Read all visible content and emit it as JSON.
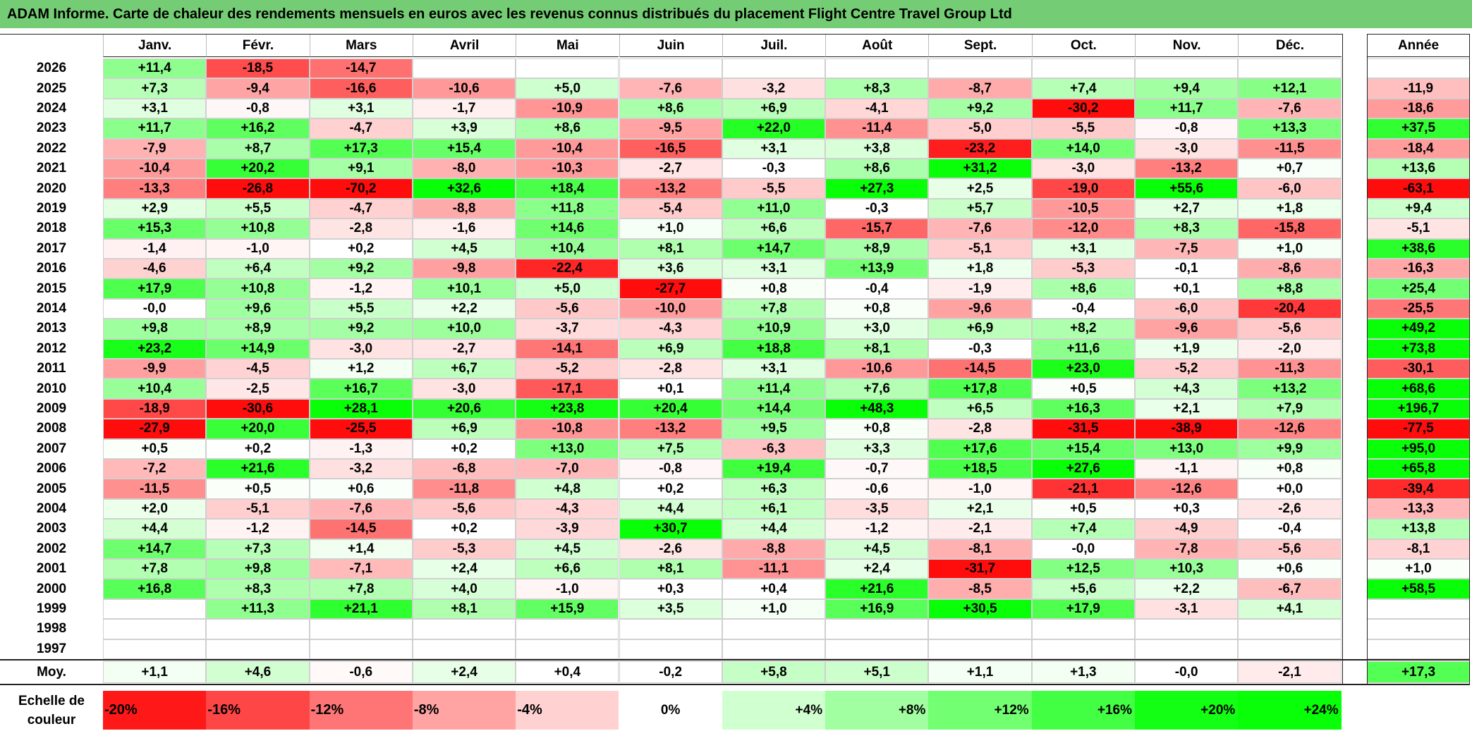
{
  "title": "ADAM Informe. Carte de chaleur des rendements mensuels en euros avec les revenus connus distribués du placement Flight Centre Travel Group Ltd",
  "months": [
    "Janv.",
    "Févr.",
    "Mars",
    "Avril",
    "Mai",
    "Juin",
    "Juil.",
    "Août",
    "Sept.",
    "Oct.",
    "Nov.",
    "Déc."
  ],
  "annual_label": "Année",
  "avg_label": "Moy.",
  "scale_title": "Echelle de couleur",
  "chart_data": {
    "type": "heatmap",
    "title": "ADAM Informe. Carte de chaleur des rendements mensuels en euros avec les revenus connus distribués du placement Flight Centre Travel Group Ltd",
    "columns": [
      "Janv.",
      "Févr.",
      "Mars",
      "Avril",
      "Mai",
      "Juin",
      "Juil.",
      "Août",
      "Sept.",
      "Oct.",
      "Nov.",
      "Déc.",
      "Année"
    ],
    "rows": [
      {
        "year": "2026",
        "values": [
          "+11,4",
          "-18,5",
          "-14,7",
          "",
          "",
          "",
          "",
          "",
          "",
          "",
          "",
          ""
        ],
        "annual": ""
      },
      {
        "year": "2025",
        "values": [
          "+7,3",
          "-9,4",
          "-16,6",
          "-10,6",
          "+5,0",
          "-7,6",
          "-3,2",
          "+8,3",
          "-8,7",
          "+7,4",
          "+9,4",
          "+12,1"
        ],
        "annual": "-11,9"
      },
      {
        "year": "2024",
        "values": [
          "+3,1",
          "-0,8",
          "+3,1",
          "-1,7",
          "-10,9",
          "+8,6",
          "+6,9",
          "-4,1",
          "+9,2",
          "-30,2",
          "+11,7",
          "-7,6"
        ],
        "annual": "-18,6"
      },
      {
        "year": "2023",
        "values": [
          "+11,7",
          "+16,2",
          "-4,7",
          "+3,9",
          "+8,6",
          "-9,5",
          "+22,0",
          "-11,4",
          "-5,0",
          "-5,5",
          "-0,8",
          "+13,3"
        ],
        "annual": "+37,5"
      },
      {
        "year": "2022",
        "values": [
          "-7,9",
          "+8,7",
          "+17,3",
          "+15,4",
          "-10,4",
          "-16,5",
          "+3,1",
          "+3,8",
          "-23,2",
          "+14,0",
          "-3,0",
          "-11,5"
        ],
        "annual": "-18,4"
      },
      {
        "year": "2021",
        "values": [
          "-10,4",
          "+20,2",
          "+9,1",
          "-8,0",
          "-10,3",
          "-2,7",
          "-0,3",
          "+8,6",
          "+31,2",
          "-3,0",
          "-13,2",
          "+0,7"
        ],
        "annual": "+13,6"
      },
      {
        "year": "2020",
        "values": [
          "-13,3",
          "-26,8",
          "-70,2",
          "+32,6",
          "+18,4",
          "-13,2",
          "-5,5",
          "+27,3",
          "+2,5",
          "-19,0",
          "+55,6",
          "-6,0"
        ],
        "annual": "-63,1"
      },
      {
        "year": "2019",
        "values": [
          "+2,9",
          "+5,5",
          "-4,7",
          "-8,8",
          "+11,8",
          "-5,4",
          "+11,0",
          "-0,3",
          "+5,7",
          "-10,5",
          "+2,7",
          "+1,8"
        ],
        "annual": "+9,4"
      },
      {
        "year": "2018",
        "values": [
          "+15,3",
          "+10,8",
          "-2,8",
          "-1,6",
          "+14,6",
          "+1,0",
          "+6,6",
          "-15,7",
          "-7,6",
          "-12,0",
          "+8,3",
          "-15,8"
        ],
        "annual": "-5,1"
      },
      {
        "year": "2017",
        "values": [
          "-1,4",
          "-1,0",
          "+0,2",
          "+4,5",
          "+10,4",
          "+8,1",
          "+14,7",
          "+8,9",
          "-5,1",
          "+3,1",
          "-7,5",
          "+1,0"
        ],
        "annual": "+38,6"
      },
      {
        "year": "2016",
        "values": [
          "-4,6",
          "+6,4",
          "+9,2",
          "-9,8",
          "-22,4",
          "+3,6",
          "+3,1",
          "+13,9",
          "+1,8",
          "-5,3",
          "-0,1",
          "-8,6"
        ],
        "annual": "-16,3"
      },
      {
        "year": "2015",
        "values": [
          "+17,9",
          "+10,8",
          "-1,2",
          "+10,1",
          "+5,0",
          "-27,7",
          "+0,8",
          "-0,4",
          "-1,9",
          "+8,6",
          "+0,1",
          "+8,8"
        ],
        "annual": "+25,4"
      },
      {
        "year": "2014",
        "values": [
          "-0,0",
          "+9,6",
          "+5,5",
          "+2,2",
          "-5,6",
          "-10,0",
          "+7,8",
          "+0,8",
          "-9,6",
          "-0,4",
          "-6,0",
          "-20,4"
        ],
        "annual": "-25,5"
      },
      {
        "year": "2013",
        "values": [
          "+9,8",
          "+8,9",
          "+9,2",
          "+10,0",
          "-3,7",
          "-4,3",
          "+10,9",
          "+3,0",
          "+6,9",
          "+8,2",
          "-9,6",
          "-5,6"
        ],
        "annual": "+49,2"
      },
      {
        "year": "2012",
        "values": [
          "+23,2",
          "+14,9",
          "-3,0",
          "-2,7",
          "-14,1",
          "+6,9",
          "+18,8",
          "+8,1",
          "-0,3",
          "+11,6",
          "+1,9",
          "-2,0"
        ],
        "annual": "+73,8"
      },
      {
        "year": "2011",
        "values": [
          "-9,9",
          "-4,5",
          "+1,2",
          "+6,7",
          "-5,2",
          "-2,8",
          "+3,1",
          "-10,6",
          "-14,5",
          "+23,0",
          "-5,2",
          "-11,3"
        ],
        "annual": "-30,1"
      },
      {
        "year": "2010",
        "values": [
          "+10,4",
          "-2,5",
          "+16,7",
          "-3,0",
          "-17,1",
          "+0,1",
          "+11,4",
          "+7,6",
          "+17,8",
          "+0,5",
          "+4,3",
          "+13,2"
        ],
        "annual": "+68,6"
      },
      {
        "year": "2009",
        "values": [
          "-18,9",
          "-30,6",
          "+28,1",
          "+20,6",
          "+23,8",
          "+20,4",
          "+14,4",
          "+48,3",
          "+6,5",
          "+16,3",
          "+2,1",
          "+7,9"
        ],
        "annual": "+196,7"
      },
      {
        "year": "2008",
        "values": [
          "-27,9",
          "+20,0",
          "-25,5",
          "+6,9",
          "-10,8",
          "-13,2",
          "+9,5",
          "+0,8",
          "-2,8",
          "-31,5",
          "-38,9",
          "-12,6"
        ],
        "annual": "-77,5"
      },
      {
        "year": "2007",
        "values": [
          "+0,5",
          "+0,2",
          "-1,3",
          "+0,2",
          "+13,0",
          "+7,5",
          "-6,3",
          "+3,3",
          "+17,6",
          "+15,4",
          "+13,0",
          "+9,9"
        ],
        "annual": "+95,0"
      },
      {
        "year": "2006",
        "values": [
          "-7,2",
          "+21,6",
          "-3,2",
          "-6,8",
          "-7,0",
          "-0,8",
          "+19,4",
          "-0,7",
          "+18,5",
          "+27,6",
          "-1,1",
          "+0,8"
        ],
        "annual": "+65,8"
      },
      {
        "year": "2005",
        "values": [
          "-11,5",
          "+0,5",
          "+0,6",
          "-11,8",
          "+4,8",
          "+0,2",
          "+6,3",
          "-0,6",
          "-1,0",
          "-21,1",
          "-12,6",
          "+0,0"
        ],
        "annual": "-39,4"
      },
      {
        "year": "2004",
        "values": [
          "+2,0",
          "-5,1",
          "-7,6",
          "-5,6",
          "-4,3",
          "+4,4",
          "+6,1",
          "-3,5",
          "+2,1",
          "+0,5",
          "+0,3",
          "-2,6"
        ],
        "annual": "-13,3"
      },
      {
        "year": "2003",
        "values": [
          "+4,4",
          "-1,2",
          "-14,5",
          "+0,2",
          "-3,9",
          "+30,7",
          "+4,4",
          "-1,2",
          "-2,1",
          "+7,4",
          "-4,9",
          "-0,4"
        ],
        "annual": "+13,8"
      },
      {
        "year": "2002",
        "values": [
          "+14,7",
          "+7,3",
          "+1,4",
          "-5,3",
          "+4,5",
          "-2,6",
          "-8,8",
          "+4,5",
          "-8,1",
          "-0,0",
          "-7,8",
          "-5,6"
        ],
        "annual": "-8,1"
      },
      {
        "year": "2001",
        "values": [
          "+7,8",
          "+9,8",
          "-7,1",
          "+2,4",
          "+6,6",
          "+8,1",
          "-11,1",
          "+2,4",
          "-31,7",
          "+12,5",
          "+10,3",
          "+0,6"
        ],
        "annual": "+1,0"
      },
      {
        "year": "2000",
        "values": [
          "+16,8",
          "+8,3",
          "+7,8",
          "+4,0",
          "-1,0",
          "+0,3",
          "+0,4",
          "+21,6",
          "-8,5",
          "+5,6",
          "+2,2",
          "-6,7"
        ],
        "annual": "+58,5"
      },
      {
        "year": "1999",
        "values": [
          "",
          "+11,3",
          "+21,1",
          "+8,1",
          "+15,9",
          "+3,5",
          "+1,0",
          "+16,9",
          "+30,5",
          "+17,9",
          "-3,1",
          "+4,1"
        ],
        "annual": ""
      },
      {
        "year": "1998",
        "values": [
          "",
          "",
          "",
          "",
          "",
          "",
          "",
          "",
          "",
          "",
          "",
          ""
        ],
        "annual": ""
      },
      {
        "year": "1997",
        "values": [
          "",
          "",
          "",
          "",
          "",
          "",
          "",
          "",
          "",
          "",
          "",
          ""
        ],
        "annual": ""
      }
    ],
    "averages": {
      "values": [
        "+1,1",
        "+4,6",
        "-0,6",
        "+2,4",
        "+0,4",
        "-0,2",
        "+5,8",
        "+5,1",
        "+1,1",
        "+1,3",
        "-0,0",
        "-2,1"
      ],
      "annual": "+17,3"
    },
    "color_scale": [
      "-20%",
      "-16%",
      "-12%",
      "-8%",
      "-4%",
      "0%",
      "+4%",
      "+8%",
      "+12%",
      "+16%",
      "+20%",
      "+24%"
    ],
    "colors": {
      "negative": "#ff0000",
      "zero": "#ffffff",
      "positive": "#00ff00",
      "title_bar": "#74cd74"
    }
  }
}
